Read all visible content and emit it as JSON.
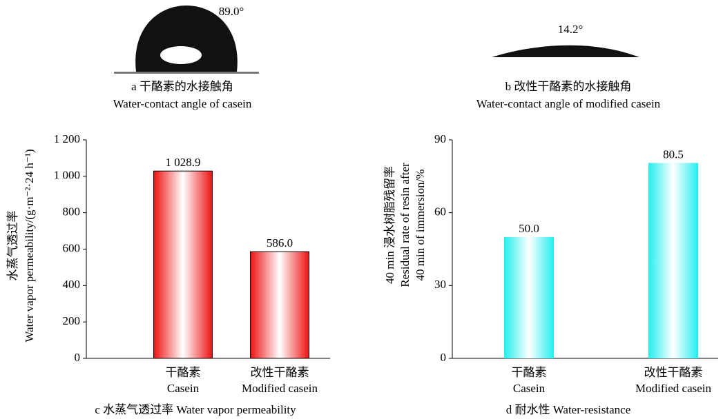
{
  "panels": [
    {
      "angle": "89.0°",
      "caption": "a 干酪素的水接触角",
      "caption_en": "Water-contact angle of casein"
    },
    {
      "angle": "14.2°",
      "caption": "b 改性干酪素的水接触角",
      "caption_en": "Water-contact angle of modified casein"
    }
  ],
  "chart_data": [
    {
      "type": "bar",
      "caption": "c 水蒸气透过率 Water vapor permeability",
      "ylabel": [
        "水蒸气透过率",
        "Water vapor permeability/(g·m⁻²·24 h⁻¹)"
      ],
      "categories": [
        "干酪素",
        "改性干酪素"
      ],
      "categories_en": [
        "Casein",
        "Modified casein"
      ],
      "values": [
        1028.9,
        586.0
      ],
      "value_labels": [
        "1 028.9",
        "586.0"
      ],
      "color": "#ee1111",
      "ylim": [
        0,
        1200
      ],
      "yticks": [
        0,
        200,
        400,
        600,
        800,
        {
          "value": 1000,
          "label": "1 000"
        },
        {
          "value": 1200,
          "label": "1 200"
        }
      ]
    },
    {
      "type": "bar",
      "caption": "d 耐水性 Water-resistance",
      "ylabel": [
        "40 min 浸水树脂残留率",
        "Residual rate of resin after",
        "40 min of immersion/%"
      ],
      "categories": [
        "干酪素",
        "改性干酪素"
      ],
      "categories_en": [
        "Casein",
        "Modified casein"
      ],
      "values": [
        50.0,
        80.5
      ],
      "value_labels": [
        "50.0",
        "80.5"
      ],
      "color": "#22eeee",
      "ylim": [
        0,
        90
      ],
      "yticks": [
        0,
        30,
        60,
        90
      ]
    }
  ]
}
